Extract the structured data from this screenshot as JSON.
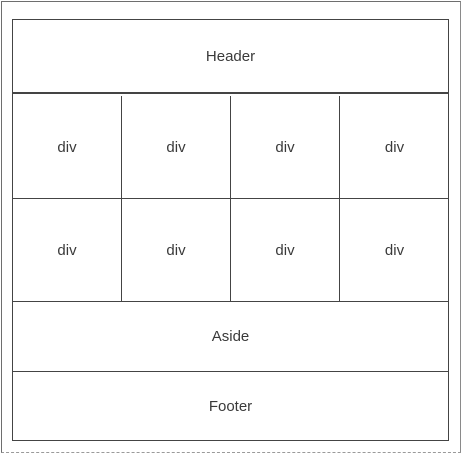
{
  "layout": {
    "header": "Header",
    "grid": [
      "div",
      "div",
      "div",
      "div",
      "div",
      "div",
      "div",
      "div"
    ],
    "aside": "Aside",
    "footer": "Footer"
  }
}
